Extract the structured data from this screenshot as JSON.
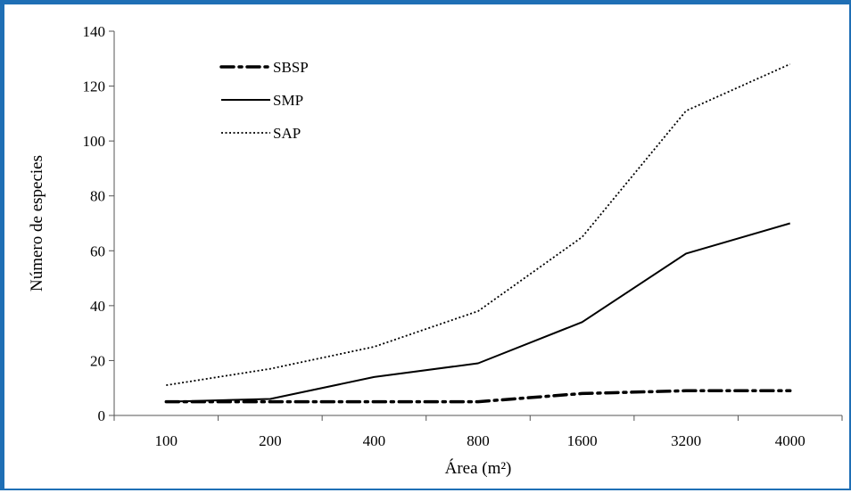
{
  "frame_color": "#1f6fb5",
  "chart_data": {
    "type": "line",
    "categories": [
      "100",
      "200",
      "400",
      "800",
      "1600",
      "3200",
      "4000"
    ],
    "ylim": [
      0,
      140
    ],
    "yticks": [
      0,
      20,
      40,
      60,
      80,
      100,
      120,
      140
    ],
    "ytick_labels": [
      "0",
      "20",
      "40",
      "60",
      "80",
      "100",
      "120",
      "140"
    ],
    "xlabel": "Área (m²)",
    "ylabel": "Número de especies",
    "grid": false,
    "legend_position": "top-left",
    "series": [
      {
        "name": "SBSP",
        "values": [
          5,
          5,
          5,
          5,
          8,
          9,
          9
        ],
        "style": "dash-dot",
        "color": "#000000"
      },
      {
        "name": "SMP",
        "values": [
          5,
          6,
          14,
          19,
          34,
          59,
          70
        ],
        "style": "solid",
        "color": "#000000"
      },
      {
        "name": "SAP",
        "values": [
          11,
          17,
          25,
          38,
          65,
          111,
          128
        ],
        "style": "dotted",
        "color": "#000000"
      }
    ]
  }
}
